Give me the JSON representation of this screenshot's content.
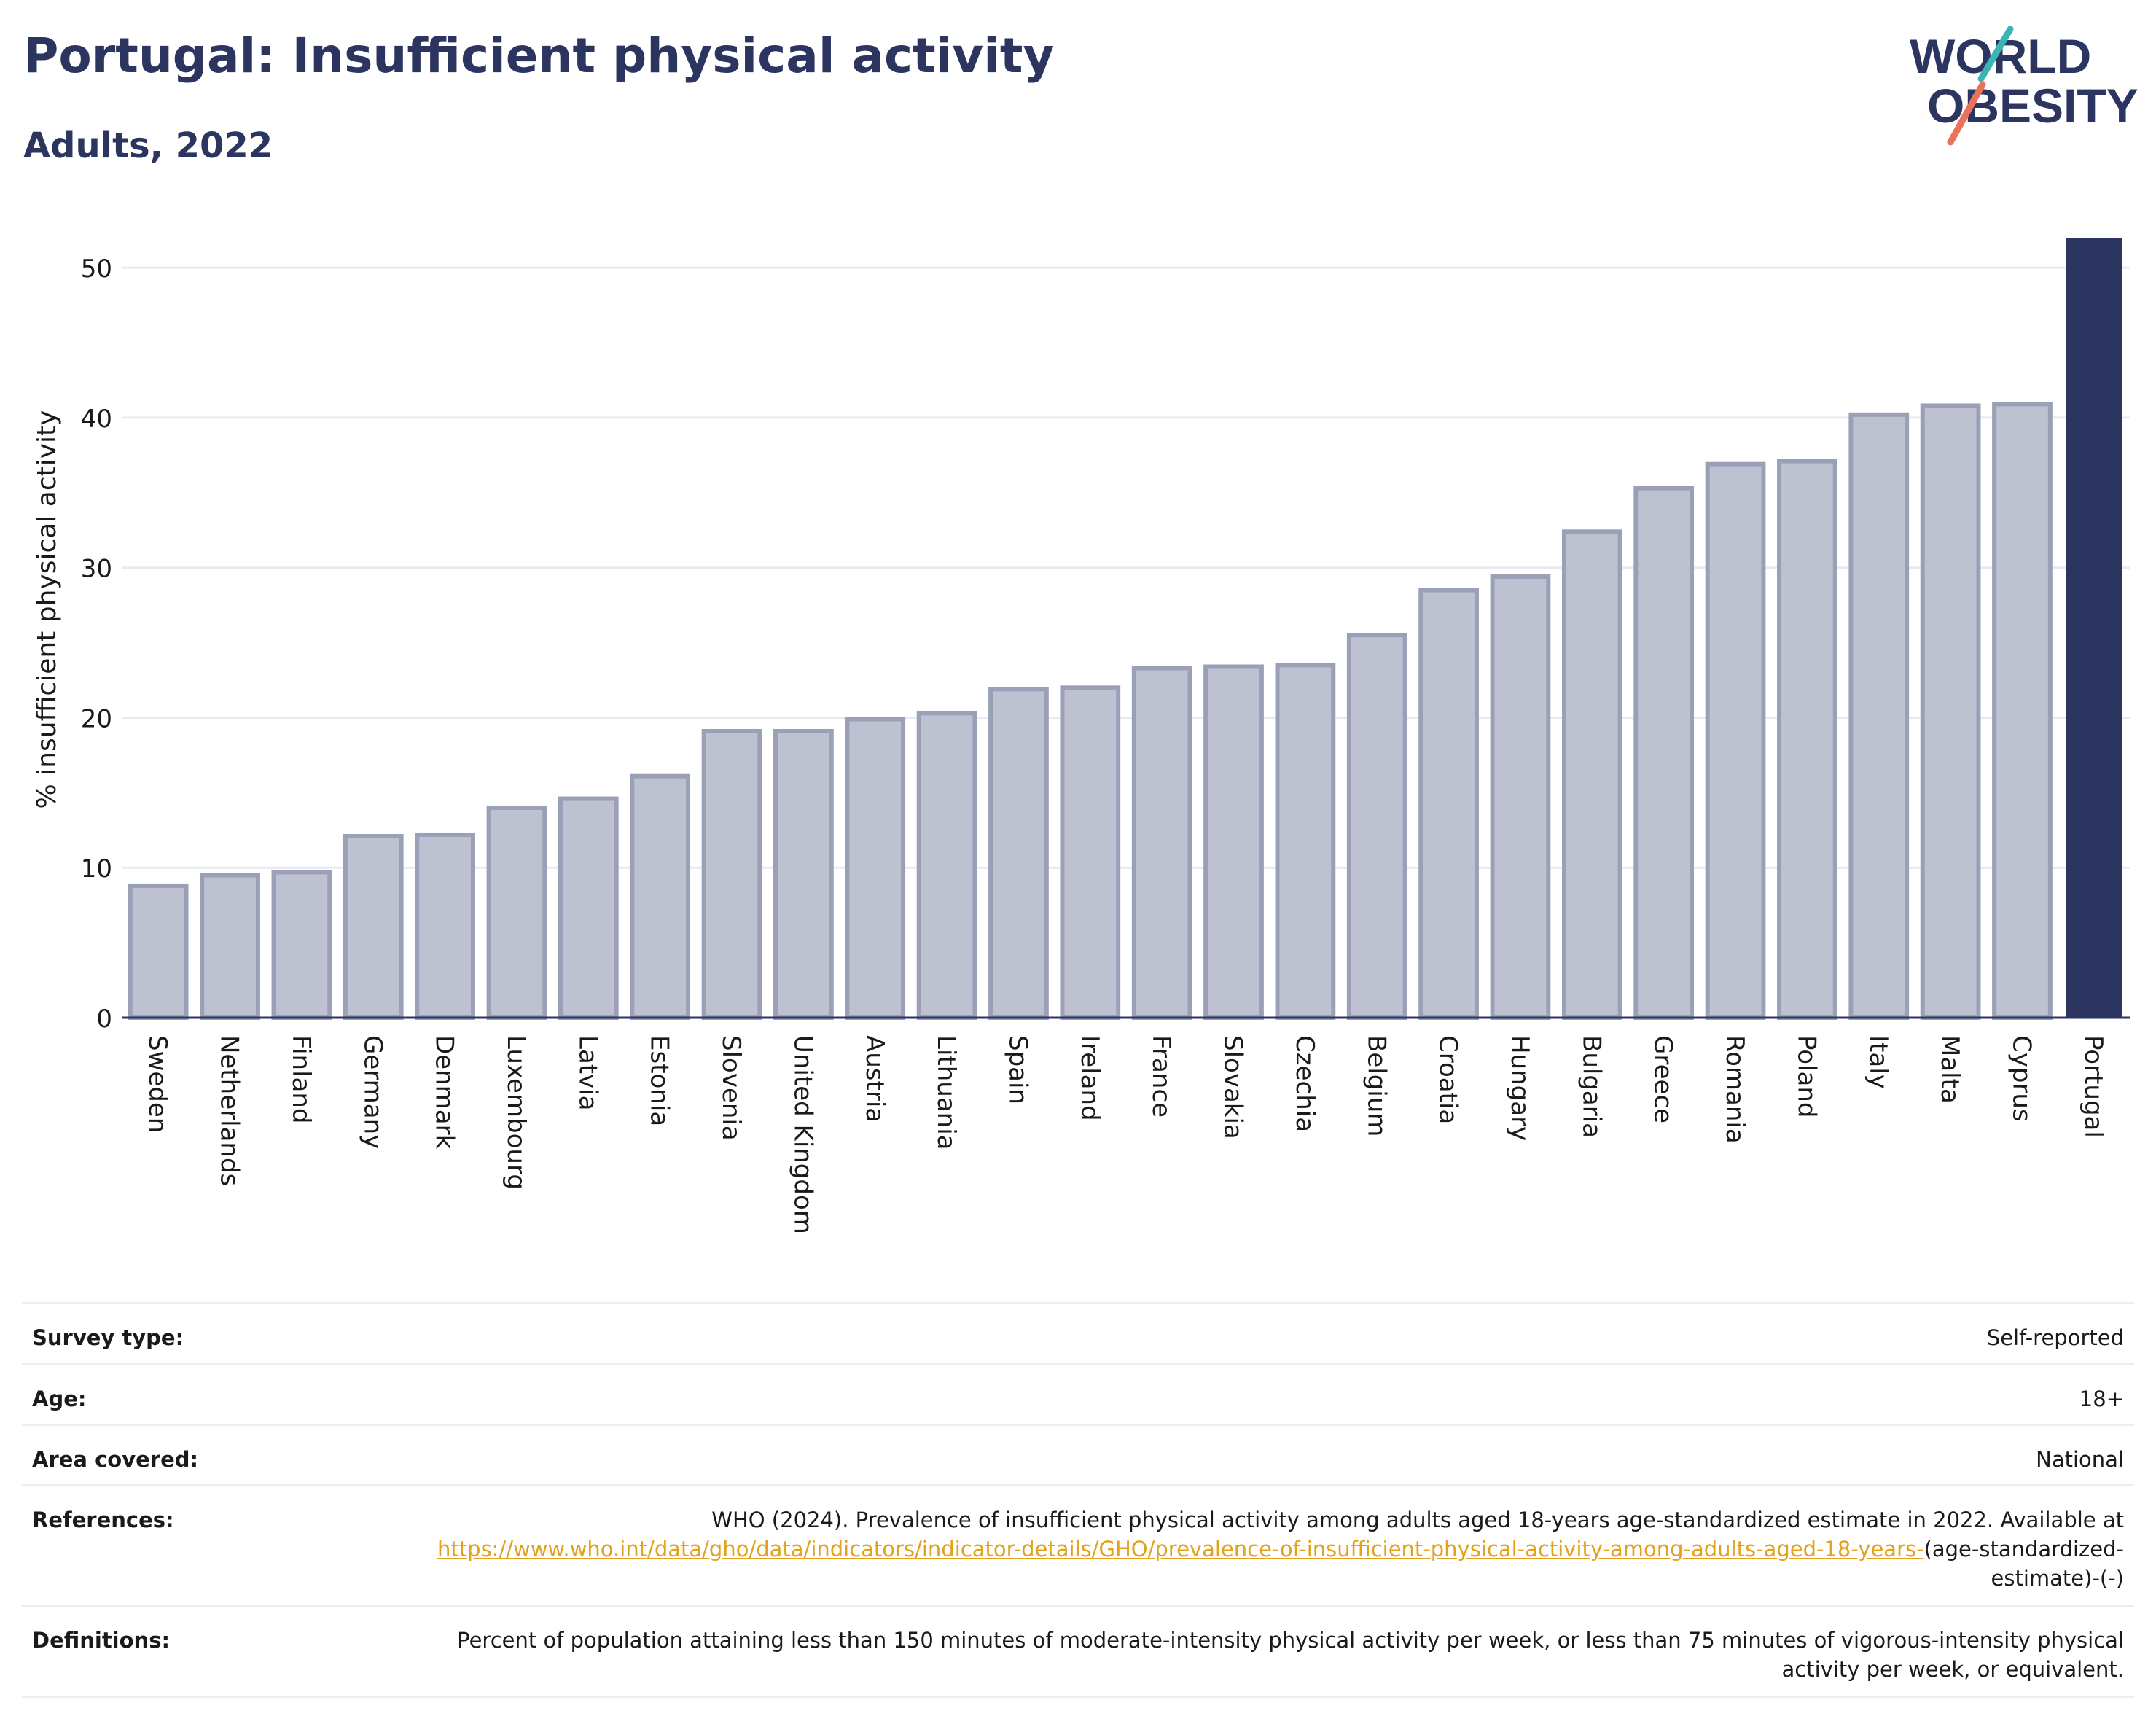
{
  "header": {
    "title": "Portugal: Insufficient physical activity",
    "subtitle": "Adults, 2022"
  },
  "logo": {
    "line1": "WORLD",
    "line2": "OBESITY"
  },
  "chart_data": {
    "type": "bar",
    "ylabel": "% insufficient physical activity",
    "xlabel": "",
    "ylim": [
      0,
      52
    ],
    "yticks": [
      0,
      10,
      20,
      30,
      40,
      50
    ],
    "grid": true,
    "categories": [
      "Sweden",
      "Netherlands",
      "Finland",
      "Germany",
      "Denmark",
      "Luxembourg",
      "Latvia",
      "Estonia",
      "Slovenia",
      "United Kingdom",
      "Austria",
      "Lithuania",
      "Spain",
      "Ireland",
      "France",
      "Slovakia",
      "Czechia",
      "Belgium",
      "Croatia",
      "Hungary",
      "Bulgaria",
      "Greece",
      "Romania",
      "Poland",
      "Italy",
      "Malta",
      "Cyprus",
      "Portugal"
    ],
    "values": [
      8.8,
      9.5,
      9.7,
      12.1,
      12.2,
      14.0,
      14.6,
      16.1,
      19.1,
      19.1,
      19.9,
      20.3,
      21.9,
      22.0,
      23.3,
      23.4,
      23.5,
      25.5,
      28.5,
      29.4,
      32.4,
      35.3,
      36.9,
      37.1,
      40.2,
      40.8,
      40.9,
      52.0
    ],
    "highlight": "Portugal",
    "colors": {
      "bar": "#bec2d0",
      "bar_border": "#9aa0b8",
      "highlight": "#2b3560",
      "grid": "#e8eaf0",
      "axis": "#2b3560"
    }
  },
  "info": {
    "survey_type_label": "Survey type:",
    "survey_type_value": "Self-reported",
    "age_label": "Age:",
    "age_value": "18+",
    "area_label": "Area covered:",
    "area_value": "National",
    "references_label": "References:",
    "references_text": "WHO (2024). Prevalence of insufficient physical activity among adults aged 18-years age-standardized estimate in 2022. Available at",
    "references_link": "https://www.who.int/data/gho/data/indicators/indicator-details/GHO/prevalence-of-insufficient-physical-activity-among-adults-aged-18-years-",
    "references_suffix": "(age-standardized-estimate)-(-)",
    "definitions_label": "Definitions:",
    "definitions_value": "Percent of population attaining less than 150 minutes of moderate-intensity physical activity per week, or less than 75 minutes of vigorous-intensity physical activity per week, or equivalent."
  }
}
